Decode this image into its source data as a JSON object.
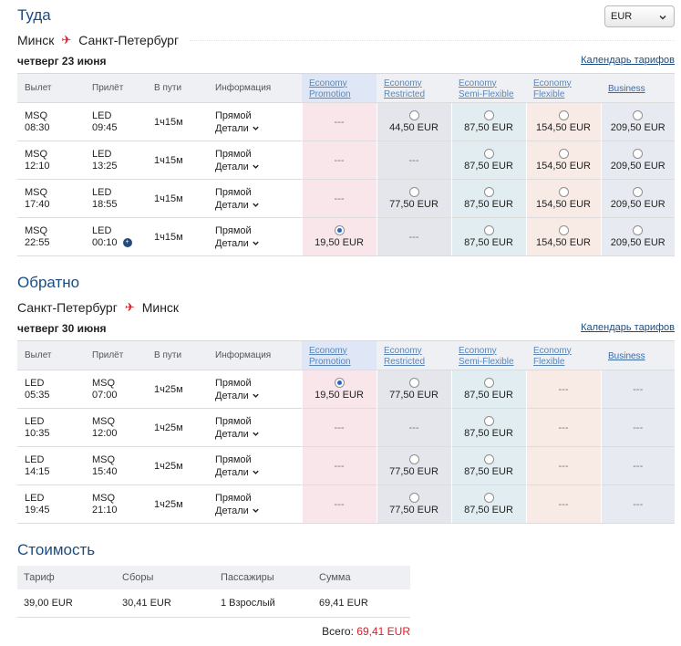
{
  "currency": {
    "selected": "EUR",
    "icon": "chevron-down-icon"
  },
  "outbound": {
    "title": "Туда",
    "origin": "Минск",
    "destination": "Санкт-Петербург",
    "route_icon": "plane-icon",
    "date": "четверг 23 июня",
    "calendar_link": "Календарь тарифов",
    "columns": {
      "dep": "Вылет",
      "arr": "Прилёт",
      "dur": "В пути",
      "info": "Информация"
    },
    "fares": [
      "Economy Promotion",
      "Economy Restricted",
      "Economy Semi-Flexible",
      "Economy Flexible",
      "Business"
    ],
    "flights": [
      {
        "dep_code": "MSQ",
        "dep_time": "08:30",
        "arr_code": "LED",
        "arr_time": "09:45",
        "next_day": false,
        "duration": "1ч15м",
        "type": "Прямой",
        "details": "Детали",
        "prices": [
          "---",
          "44,50 EUR",
          "87,50 EUR",
          "154,50 EUR",
          "209,50 EUR"
        ],
        "selected": -1
      },
      {
        "dep_code": "MSQ",
        "dep_time": "12:10",
        "arr_code": "LED",
        "arr_time": "13:25",
        "next_day": false,
        "duration": "1ч15м",
        "type": "Прямой",
        "details": "Детали",
        "prices": [
          "---",
          "---",
          "87,50 EUR",
          "154,50 EUR",
          "209,50 EUR"
        ],
        "selected": -1
      },
      {
        "dep_code": "MSQ",
        "dep_time": "17:40",
        "arr_code": "LED",
        "arr_time": "18:55",
        "next_day": false,
        "duration": "1ч15м",
        "type": "Прямой",
        "details": "Детали",
        "prices": [
          "---",
          "77,50 EUR",
          "87,50 EUR",
          "154,50 EUR",
          "209,50 EUR"
        ],
        "selected": -1
      },
      {
        "dep_code": "MSQ",
        "dep_time": "22:55",
        "arr_code": "LED",
        "arr_time": "00:10",
        "next_day": true,
        "duration": "1ч15м",
        "type": "Прямой",
        "details": "Детали",
        "prices": [
          "19,50 EUR",
          "---",
          "87,50 EUR",
          "154,50 EUR",
          "209,50 EUR"
        ],
        "selected": 0
      }
    ]
  },
  "inbound": {
    "title": "Обратно",
    "origin": "Санкт-Петербург",
    "destination": "Минск",
    "route_icon": "plane-icon",
    "date": "четверг 30 июня",
    "calendar_link": "Календарь тарифов",
    "columns": {
      "dep": "Вылет",
      "arr": "Прилёт",
      "dur": "В пути",
      "info": "Информация"
    },
    "fares": [
      "Economy Promotion",
      "Economy Restricted",
      "Economy Semi-Flexible",
      "Economy Flexible",
      "Business"
    ],
    "flights": [
      {
        "dep_code": "LED",
        "dep_time": "05:35",
        "arr_code": "MSQ",
        "arr_time": "07:00",
        "next_day": false,
        "duration": "1ч25м",
        "type": "Прямой",
        "details": "Детали",
        "prices": [
          "19,50 EUR",
          "77,50 EUR",
          "87,50 EUR",
          "---",
          "---"
        ],
        "selected": 0
      },
      {
        "dep_code": "LED",
        "dep_time": "10:35",
        "arr_code": "MSQ",
        "arr_time": "12:00",
        "next_day": false,
        "duration": "1ч25м",
        "type": "Прямой",
        "details": "Детали",
        "prices": [
          "---",
          "---",
          "87,50 EUR",
          "---",
          "---"
        ],
        "selected": -1
      },
      {
        "dep_code": "LED",
        "dep_time": "14:15",
        "arr_code": "MSQ",
        "arr_time": "15:40",
        "next_day": false,
        "duration": "1ч25м",
        "type": "Прямой",
        "details": "Детали",
        "prices": [
          "---",
          "77,50 EUR",
          "87,50 EUR",
          "---",
          "---"
        ],
        "selected": -1
      },
      {
        "dep_code": "LED",
        "dep_time": "19:45",
        "arr_code": "MSQ",
        "arr_time": "21:10",
        "next_day": false,
        "duration": "1ч25м",
        "type": "Прямой",
        "details": "Детали",
        "prices": [
          "---",
          "77,50 EUR",
          "87,50 EUR",
          "---",
          "---"
        ],
        "selected": -1
      }
    ]
  },
  "cost": {
    "title": "Стоимость",
    "headers": [
      "Тариф",
      "Сборы",
      "Пассажиры",
      "Сумма"
    ],
    "row": [
      "39,00 EUR",
      "30,41 EUR",
      "1 Взрослый",
      "69,41 EUR"
    ],
    "total_label": "Всего:",
    "total_value": "69,41 EUR"
  },
  "colors": {
    "accent": "#1a4c82",
    "price_total": "#d4202a",
    "plane": "#d4202a",
    "radio_selected": "#2b66c4"
  }
}
